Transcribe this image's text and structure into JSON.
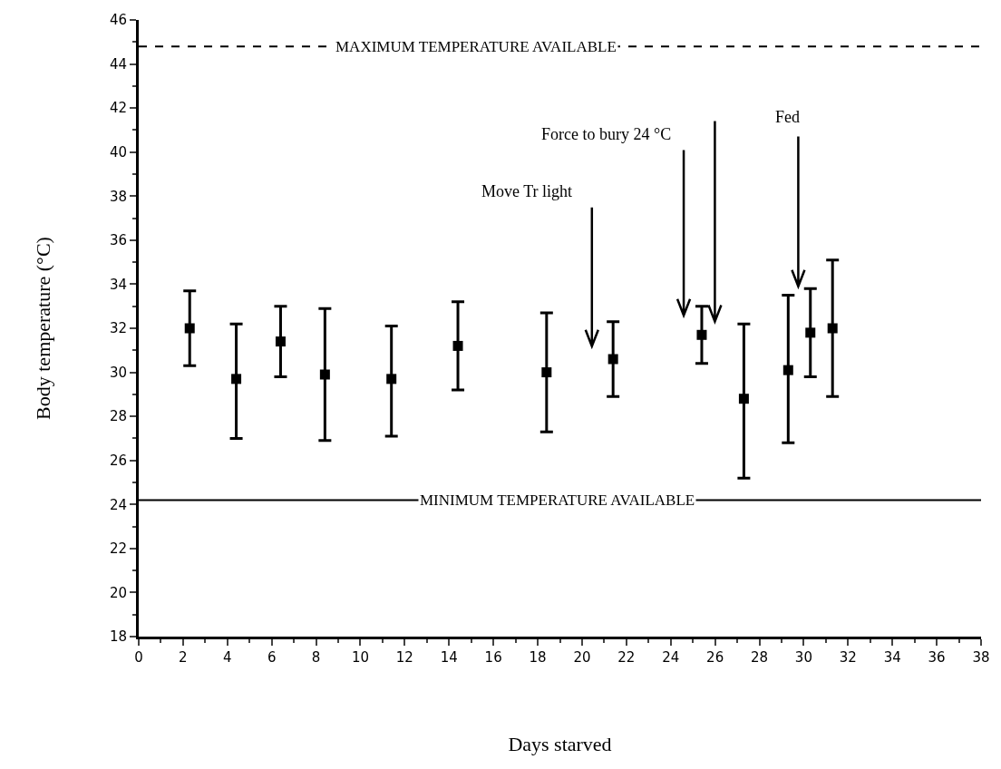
{
  "chart_data": {
    "type": "scatter",
    "xlabel": "Days starved",
    "ylabel": "Body temperature (°C)",
    "x": [
      2.3,
      4.4,
      6.4,
      8.4,
      11.4,
      14.4,
      18.4,
      21.4,
      25.4,
      27.3,
      29.3,
      30.3,
      31.3
    ],
    "series": [
      {
        "color": "#000000",
        "values": [
          32.0,
          29.7,
          31.4,
          29.9,
          29.7,
          31.2,
          30.0,
          30.6,
          31.7,
          28.8,
          30.1,
          31.8,
          32.0
        ],
        "errors": [
          [
            30.3,
            33.7
          ],
          [
            27.0,
            32.2
          ],
          [
            29.8,
            33.0
          ],
          [
            26.9,
            32.9
          ],
          [
            27.1,
            32.1
          ],
          [
            29.2,
            33.2
          ],
          [
            27.3,
            32.7
          ],
          [
            28.9,
            32.3
          ],
          [
            30.4,
            33.0
          ],
          [
            25.2,
            32.2
          ],
          [
            26.8,
            33.5
          ],
          [
            29.8,
            33.8
          ],
          [
            28.9,
            35.1
          ]
        ]
      }
    ],
    "marker": "square",
    "xlim": [
      0,
      38
    ],
    "ylim": [
      18,
      46
    ],
    "xticks": [
      0,
      2,
      4,
      6,
      8,
      10,
      12,
      14,
      16,
      18,
      20,
      22,
      24,
      26,
      28,
      30,
      32,
      34,
      36,
      38
    ],
    "yticks": [
      18,
      20,
      22,
      24,
      26,
      28,
      30,
      32,
      34,
      36,
      38,
      40,
      42,
      44,
      46
    ],
    "grid": false,
    "ref_lines": [
      {
        "axis": "y",
        "value": 44.8,
        "label": "MAXIMUM TEMPERATURE AVAILABLE",
        "line_style": "dashed",
        "color": "#000000"
      },
      {
        "axis": "y",
        "value": 24.2,
        "label": "MINIMUM TEMPERATURE AVAILABLE",
        "line_style": "solid",
        "color": "#000000"
      }
    ],
    "annotations": [
      "Move Tr light",
      "Force to bury 24 °C",
      "Fed"
    ]
  }
}
